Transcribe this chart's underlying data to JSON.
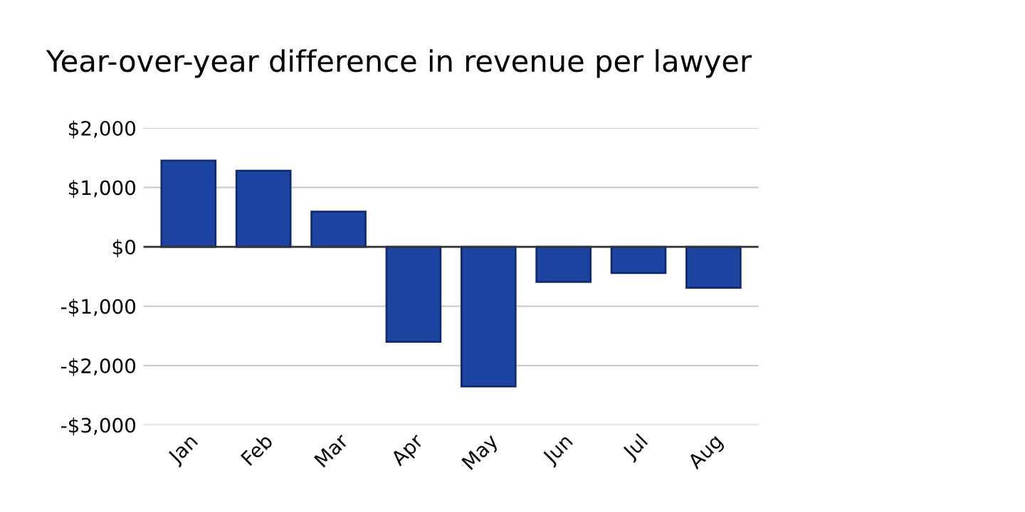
{
  "chart_data": {
    "type": "bar",
    "title": "Year-over-year difference in revenue per lawyer",
    "categories": [
      "Jan",
      "Feb",
      "Mar",
      "Apr",
      "May",
      "Jun",
      "Jul",
      "Aug"
    ],
    "values": [
      1450,
      1280,
      590,
      -1600,
      -2350,
      -590,
      -440,
      -690
    ],
    "color": "#1c44a0",
    "ylim": [
      -3000,
      2000
    ],
    "yticks": [
      {
        "value": -3000,
        "label": "-$3,000"
      },
      {
        "value": -2000,
        "label": "-$2,000"
      },
      {
        "value": -1000,
        "label": "-$1,000"
      },
      {
        "value": 0,
        "label": "$0"
      },
      {
        "value": 1000,
        "label": "$1,000"
      },
      {
        "value": 2000,
        "label": "$2,000"
      }
    ],
    "grid": "y"
  }
}
